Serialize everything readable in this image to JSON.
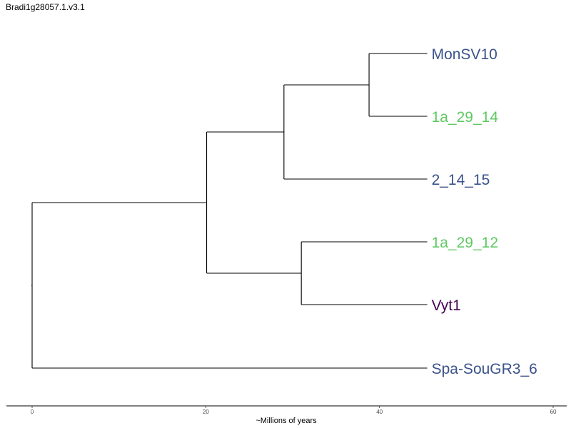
{
  "title": "Bradi1g28057.1.v3.1",
  "axis": {
    "label": "~Millions of years",
    "range": [
      0,
      60
    ],
    "ticks": [
      "0",
      "20",
      "40",
      "60"
    ]
  },
  "tree": {
    "tips": [
      {
        "id": "monsv10",
        "label": "MonSV10",
        "color": "#3b528b"
      },
      {
        "id": "1a_29_14",
        "label": "1a_29_14",
        "color": "#5ec962"
      },
      {
        "id": "2_14_15",
        "label": "2_14_15",
        "color": "#3b528b"
      },
      {
        "id": "1a_29_12",
        "label": "1a_29_12",
        "color": "#5ec962"
      },
      {
        "id": "vyt1",
        "label": "Vyt1",
        "color": "#440154"
      },
      {
        "id": "spa-sougr3_6",
        "label": "Spa-SouGR3_6",
        "color": "#3b528b"
      }
    ],
    "tip_depth": 45.5,
    "nodes": {
      "root": 0,
      "n1": 20.1,
      "n2": 29.0,
      "n3": 38.8,
      "n4": 31.0
    },
    "topology": "(Spa-SouGR3_6, (((MonSV10, 1a_29_14), 2_14_15), (1a_29_12, Vyt1)))"
  }
}
